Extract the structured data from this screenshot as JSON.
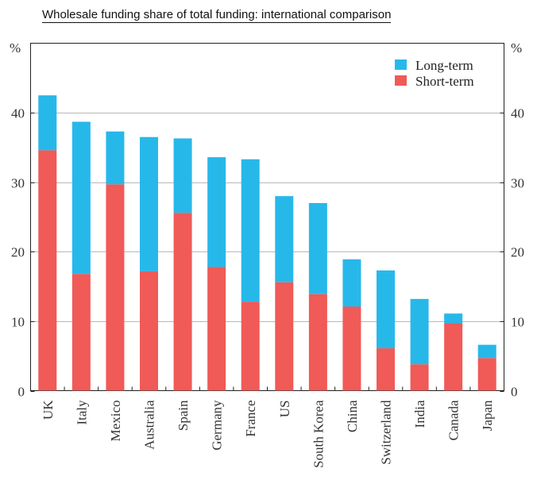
{
  "chart_data": {
    "type": "bar",
    "stacked": true,
    "title": "Wholesale funding share of total funding: international comparison",
    "ylabel_left": "%",
    "ylabel_right": "%",
    "ylim": [
      0,
      50
    ],
    "yticks": [
      0,
      10,
      20,
      30,
      40
    ],
    "categories": [
      "UK",
      "Italy",
      "Mexico",
      "Australia",
      "Spain",
      "Germany",
      "France",
      "US",
      "South Korea",
      "China",
      "Switzerland",
      "India",
      "Canada",
      "Japan"
    ],
    "series": [
      {
        "name": "Short-term",
        "color": "#f05a57",
        "values": [
          34.6,
          16.8,
          29.7,
          17.2,
          25.6,
          17.8,
          12.8,
          15.6,
          13.9,
          12.1,
          6.1,
          3.8,
          9.7,
          4.7
        ]
      },
      {
        "name": "Long-term",
        "color": "#27b8ea",
        "values": [
          7.9,
          21.9,
          7.6,
          19.3,
          10.7,
          15.8,
          20.5,
          12.4,
          13.1,
          6.8,
          11.2,
          9.4,
          1.4,
          1.9
        ]
      }
    ],
    "legend": [
      {
        "name": "Long-term",
        "color": "#27b8ea"
      },
      {
        "name": "Short-term",
        "color": "#f05a57"
      }
    ]
  }
}
